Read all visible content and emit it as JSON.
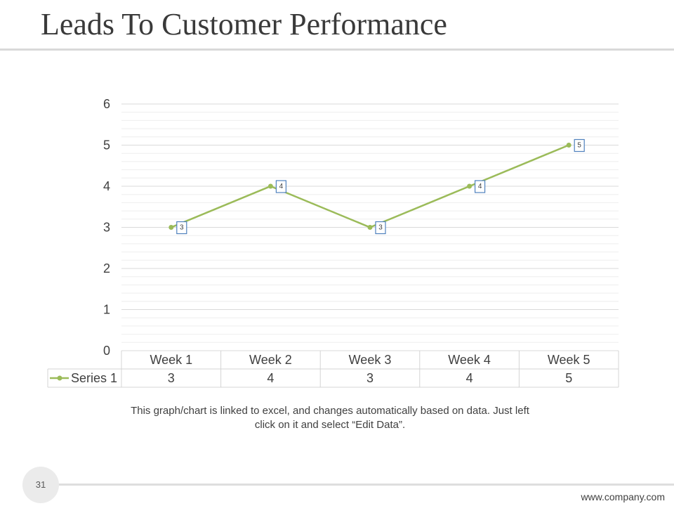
{
  "slide": {
    "title": "Leads To Customer Performance",
    "caption_line1": "This graph/chart is linked to excel, and changes automatically based on data. Just left",
    "caption_line2": "click on it and select “Edit Data”.",
    "page_number": "31",
    "footer_url": "www.company.com"
  },
  "chart_data": {
    "type": "line",
    "categories": [
      "Week 1",
      "Week 2",
      "Week 3",
      "Week 4",
      "Week 5"
    ],
    "series": [
      {
        "name": "Series 1",
        "values": [
          3,
          4,
          3,
          4,
          5
        ]
      }
    ],
    "ylim": [
      0,
      6
    ],
    "yticks": [
      0,
      1,
      2,
      3,
      4,
      5,
      6
    ],
    "grid": true,
    "data_labels": true,
    "data_table": true
  },
  "colors": {
    "series_line": "#9bbb59",
    "data_label_border": "#4f81bd",
    "gridline_major": "#d9d9d9",
    "gridline_minor": "#eeeeee",
    "table_border": "#d4d4d4",
    "text": "#404040"
  }
}
